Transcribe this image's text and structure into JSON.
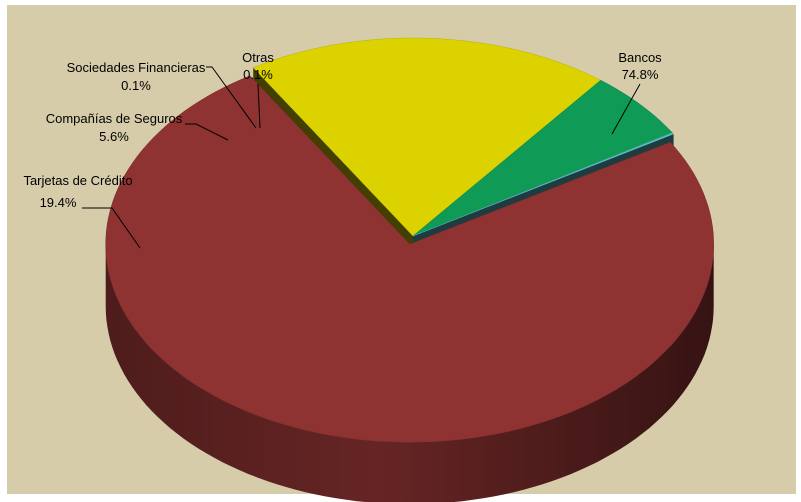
{
  "chart_data": {
    "type": "pie",
    "style": "3d-exploded",
    "title": "",
    "slices": [
      {
        "label": "Bancos",
        "percent_label": "74.8%",
        "value": 74.8,
        "color": "#8e3332"
      },
      {
        "label": "Tarjetas de Crédito",
        "percent_label": "19.4%",
        "value": 19.4,
        "color": "#dcd200"
      },
      {
        "label": "Compañías de Seguros",
        "percent_label": "5.6%",
        "value": 5.6,
        "color": "#0f9a55"
      },
      {
        "label": "Sociedades Financieras",
        "percent_label": "0.1%",
        "value": 0.1,
        "color": "#2aa96a"
      },
      {
        "label": "Otras",
        "percent_label": "0.1%",
        "value": 0.1,
        "color": "#5fc9d6"
      }
    ],
    "legend": "none",
    "data_labels": "outside-with-leader-lines",
    "background_color": "#d6ccaa"
  }
}
